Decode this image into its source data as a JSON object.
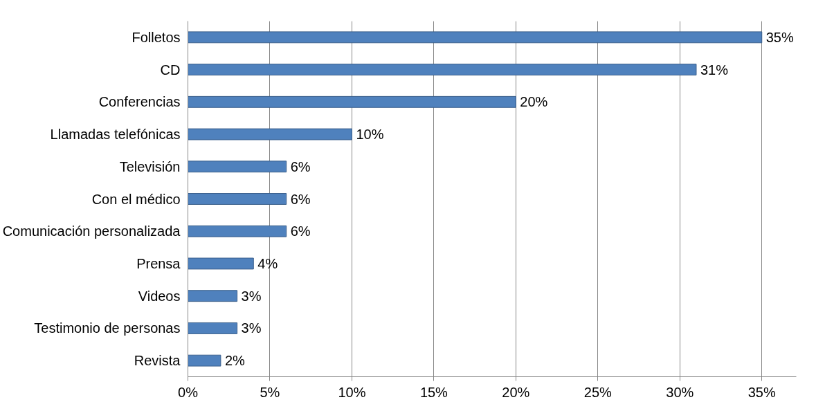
{
  "chart_data": {
    "type": "bar",
    "orientation": "horizontal",
    "categories": [
      "Folletos",
      "CD",
      "Conferencias",
      "Llamadas telefónicas",
      "Televisión",
      "Con el médico",
      "Comunicación personalizada",
      "Prensa",
      "Videos",
      "Testimonio de personas",
      "Revista"
    ],
    "values": [
      35,
      31,
      20,
      10,
      6,
      6,
      6,
      4,
      3,
      3,
      2
    ],
    "value_labels": [
      "35%",
      "31%",
      "20%",
      "10%",
      "6%",
      "6%",
      "6%",
      "4%",
      "3%",
      "3%",
      "2%"
    ],
    "color": "#4f81bd",
    "xlim": [
      0,
      35
    ],
    "xticks": [
      {
        "value": 0,
        "label": "0%"
      },
      {
        "value": 5,
        "label": "5%"
      },
      {
        "value": 10,
        "label": "10%"
      },
      {
        "value": 15,
        "label": "15%"
      },
      {
        "value": 20,
        "label": "20%"
      },
      {
        "value": 25,
        "label": "25%"
      },
      {
        "value": 30,
        "label": "30%"
      },
      {
        "value": 35,
        "label": "35%"
      }
    ],
    "grid": "x"
  }
}
